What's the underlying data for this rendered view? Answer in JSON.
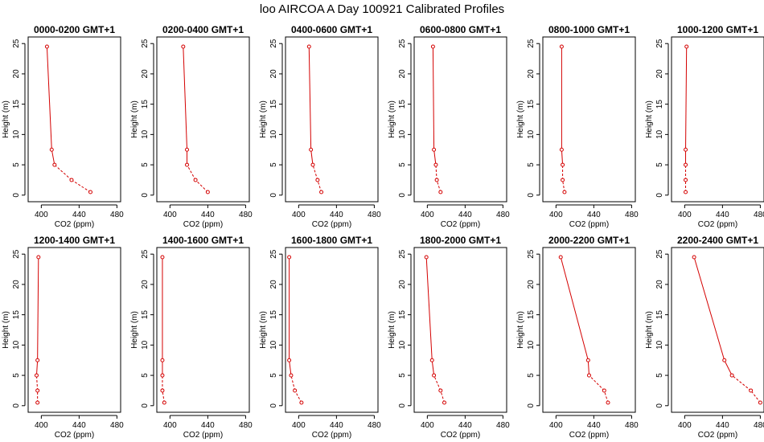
{
  "page": {
    "title": "loo AIRCOA A  Day 100921  Calibrated Profiles"
  },
  "style": {
    "line_color": "#d40000",
    "point_color": "#d40000",
    "axis_color": "#000000"
  },
  "chart_data": [
    {
      "type": "line",
      "title": "0000-0200 GMT+1",
      "xlabel": "CO2 (ppm)",
      "ylabel": "Height (m)",
      "xlim": [
        390,
        480
      ],
      "ylim": [
        0,
        25
      ],
      "xticks": [
        400,
        440,
        480
      ],
      "yticks": [
        0,
        5,
        10,
        15,
        20,
        25
      ],
      "x": [
        452,
        432,
        414,
        411,
        406
      ],
      "y": [
        0.5,
        2.5,
        5,
        7.5,
        24.5
      ]
    },
    {
      "type": "line",
      "title": "0200-0400 GMT+1",
      "xlabel": "CO2 (ppm)",
      "ylabel": "Height (m)",
      "xlim": [
        390,
        480
      ],
      "ylim": [
        0,
        25
      ],
      "xticks": [
        400,
        440,
        480
      ],
      "yticks": [
        0,
        5,
        10,
        15,
        20,
        25
      ],
      "x": [
        440,
        427,
        418,
        418,
        414
      ],
      "y": [
        0.5,
        2.5,
        5,
        7.5,
        24.5
      ]
    },
    {
      "type": "line",
      "title": "0400-0600 GMT+1",
      "xlabel": "CO2 (ppm)",
      "ylabel": "Height (m)",
      "xlim": [
        390,
        480
      ],
      "ylim": [
        0,
        25
      ],
      "xticks": [
        400,
        440,
        480
      ],
      "yticks": [
        0,
        5,
        10,
        15,
        20,
        25
      ],
      "x": [
        424,
        420,
        415,
        413,
        411
      ],
      "y": [
        0.5,
        2.5,
        5,
        7.5,
        24.5
      ]
    },
    {
      "type": "line",
      "title": "0600-0800 GMT+1",
      "xlabel": "CO2 (ppm)",
      "ylabel": "Height (m)",
      "xlim": [
        390,
        480
      ],
      "ylim": [
        0,
        25
      ],
      "xticks": [
        400,
        440,
        480
      ],
      "yticks": [
        0,
        5,
        10,
        15,
        20,
        25
      ],
      "x": [
        414,
        410,
        409,
        407,
        406
      ],
      "y": [
        0.5,
        2.5,
        5,
        7.5,
        24.5
      ]
    },
    {
      "type": "line",
      "title": "0800-1000 GMT+1",
      "xlabel": "CO2 (ppm)",
      "ylabel": "Height (m)",
      "xlim": [
        390,
        480
      ],
      "ylim": [
        0,
        25
      ],
      "xticks": [
        400,
        440,
        480
      ],
      "yticks": [
        0,
        5,
        10,
        15,
        20,
        25
      ],
      "x": [
        409,
        407,
        407,
        406,
        406
      ],
      "y": [
        0.5,
        2.5,
        5,
        7.5,
        24.5
      ]
    },
    {
      "type": "line",
      "title": "1000-1200 GMT+1",
      "xlabel": "CO2 (ppm)",
      "ylabel": "Height (m)",
      "xlim": [
        390,
        480
      ],
      "ylim": [
        0,
        25
      ],
      "xticks": [
        400,
        440,
        480
      ],
      "yticks": [
        0,
        5,
        10,
        15,
        20,
        25
      ],
      "x": [
        401,
        401,
        401,
        401,
        402
      ],
      "y": [
        0.5,
        2.5,
        5,
        7.5,
        24.5
      ]
    },
    {
      "type": "line",
      "title": "1200-1400 GMT+1",
      "xlabel": "CO2 (ppm)",
      "ylabel": "Height (m)",
      "xlim": [
        390,
        480
      ],
      "ylim": [
        0,
        25
      ],
      "xticks": [
        400,
        440,
        480
      ],
      "yticks": [
        0,
        5,
        10,
        15,
        20,
        25
      ],
      "x": [
        396,
        396,
        395,
        396,
        397
      ],
      "y": [
        0.5,
        2.5,
        5,
        7.5,
        24.5
      ]
    },
    {
      "type": "line",
      "title": "1400-1600 GMT+1",
      "xlabel": "CO2 (ppm)",
      "ylabel": "Height (m)",
      "xlim": [
        390,
        480
      ],
      "ylim": [
        0,
        25
      ],
      "xticks": [
        400,
        440,
        480
      ],
      "yticks": [
        0,
        5,
        10,
        15,
        20,
        25
      ],
      "x": [
        394,
        392,
        392,
        392,
        392
      ],
      "y": [
        0.5,
        2.5,
        5,
        7.5,
        24.5
      ]
    },
    {
      "type": "line",
      "title": "1600-1800 GMT+1",
      "xlabel": "CO2 (ppm)",
      "ylabel": "Height (m)",
      "xlim": [
        390,
        480
      ],
      "ylim": [
        0,
        25
      ],
      "xticks": [
        400,
        440,
        480
      ],
      "yticks": [
        0,
        5,
        10,
        15,
        20,
        25
      ],
      "x": [
        403,
        396,
        392,
        390,
        390
      ],
      "y": [
        0.5,
        2.5,
        5,
        7.5,
        24.5
      ]
    },
    {
      "type": "line",
      "title": "1800-2000 GMT+1",
      "xlabel": "CO2 (ppm)",
      "ylabel": "Height (m)",
      "xlim": [
        390,
        480
      ],
      "ylim": [
        0,
        25
      ],
      "xticks": [
        400,
        440,
        480
      ],
      "yticks": [
        0,
        5,
        10,
        15,
        20,
        25
      ],
      "x": [
        418,
        414,
        407,
        405,
        399
      ],
      "y": [
        0.5,
        2.5,
        5,
        7.5,
        24.5
      ]
    },
    {
      "type": "line",
      "title": "2000-2200 GMT+1",
      "xlabel": "CO2 (ppm)",
      "ylabel": "Height (m)",
      "xlim": [
        390,
        480
      ],
      "ylim": [
        0,
        25
      ],
      "xticks": [
        400,
        440,
        480
      ],
      "yticks": [
        0,
        5,
        10,
        15,
        20,
        25
      ],
      "x": [
        455,
        451,
        435,
        434,
        405
      ],
      "y": [
        0.5,
        2.5,
        5,
        7.5,
        24.5
      ]
    },
    {
      "type": "line",
      "title": "2200-2400 GMT+1",
      "xlabel": "CO2 (ppm)",
      "ylabel": "Height (m)",
      "xlim": [
        390,
        480
      ],
      "ylim": [
        0,
        25
      ],
      "xticks": [
        400,
        440,
        480
      ],
      "yticks": [
        0,
        5,
        10,
        15,
        20,
        25
      ],
      "x": [
        480,
        470,
        450,
        442,
        410
      ],
      "y": [
        0.5,
        2.5,
        5,
        7.5,
        24.5
      ]
    }
  ]
}
